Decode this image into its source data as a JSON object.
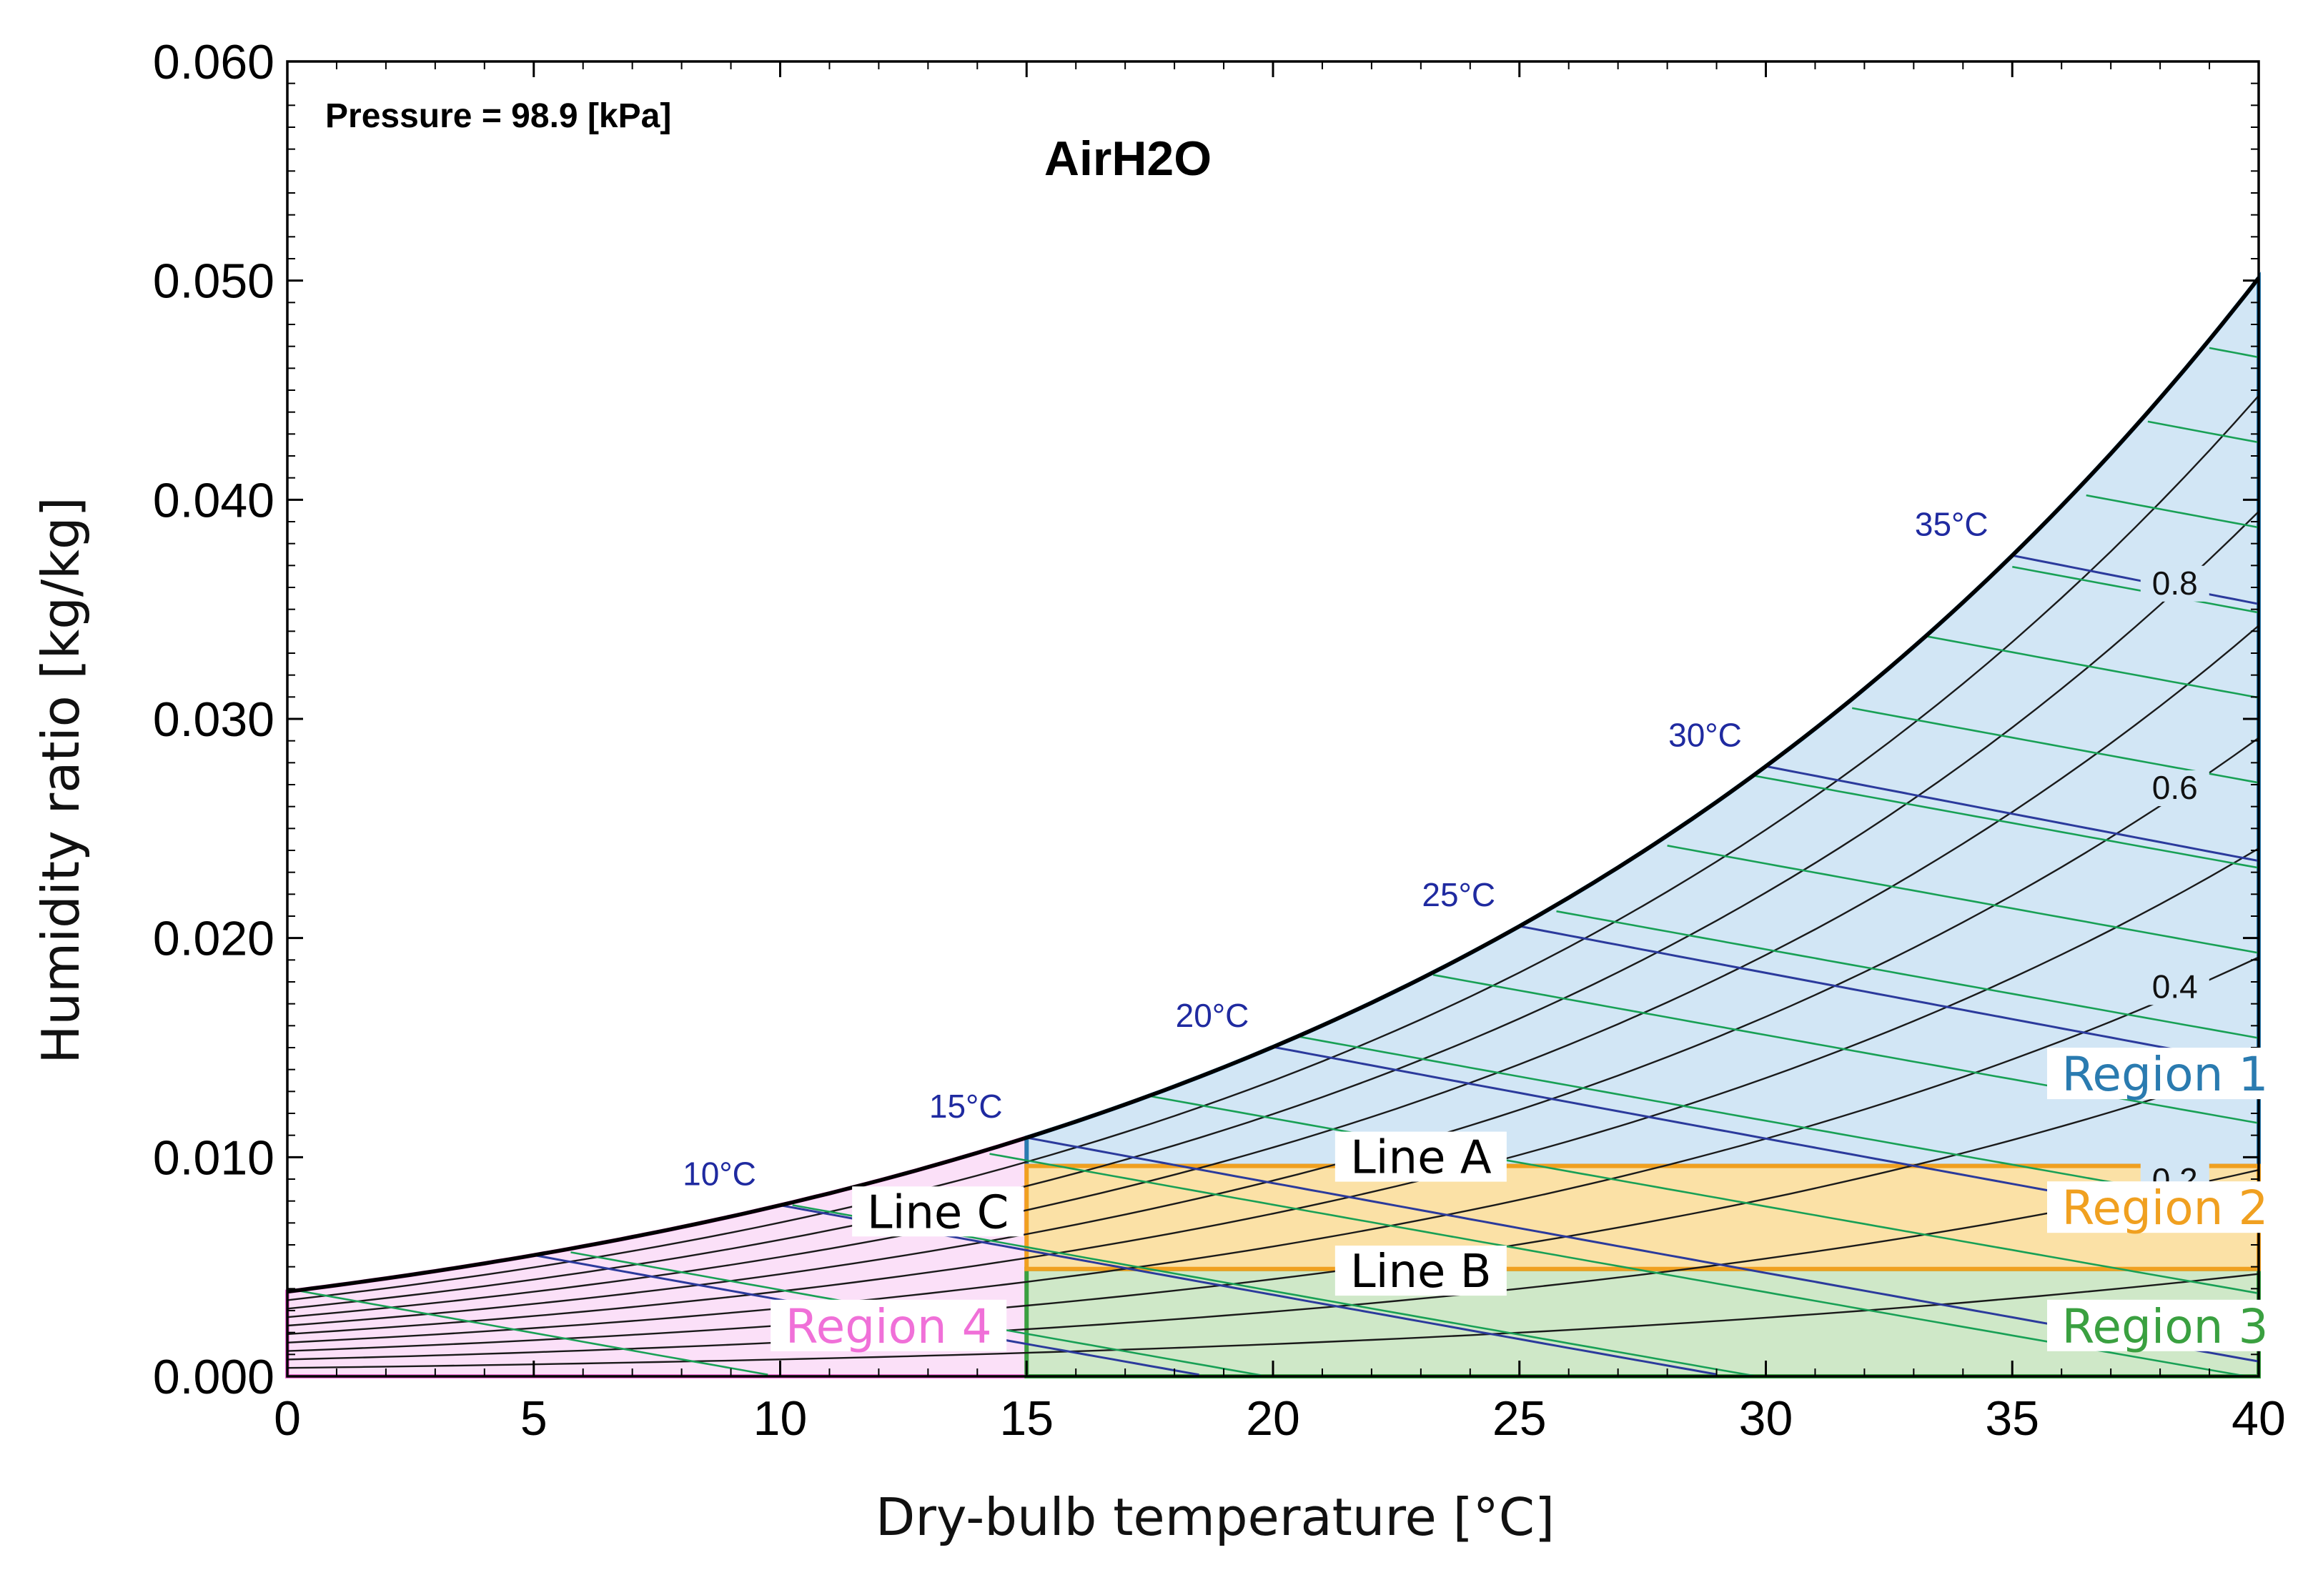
{
  "chart_data": {
    "type": "line",
    "title": "AirH2O",
    "subtitle": "Pressure = 98.9 [kPa]",
    "xlabel": "Dry-bulb temperature [°C]",
    "ylabel": "Humidity ratio [kg/kg]",
    "xlim": [
      0,
      40
    ],
    "ylim": [
      0,
      0.06
    ],
    "x_ticks": [
      "0",
      "5",
      "10",
      "15",
      "20",
      "25",
      "30",
      "35",
      "40"
    ],
    "y_ticks": [
      "0.000",
      "0.010",
      "0.020",
      "0.030",
      "0.040",
      "0.050",
      "0.060"
    ],
    "pressure_kpa": 98.9,
    "saturation_curve": {
      "x": [
        0,
        5,
        10,
        15,
        20,
        25,
        30,
        35,
        40
      ],
      "y": [
        0.0039,
        0.0055,
        0.0078,
        0.0109,
        0.0151,
        0.0206,
        0.028,
        0.0376,
        0.05
      ]
    },
    "relative_humidity_lines": [
      {
        "label": "0.8",
        "rh": 0.8
      },
      {
        "label": "0.6",
        "rh": 0.6
      },
      {
        "label": "0.4",
        "rh": 0.4
      },
      {
        "label": "0.2",
        "rh": 0.2
      }
    ],
    "wet_bulb_lines": [
      {
        "label": "10°C",
        "t": 10
      },
      {
        "label": "15°C",
        "t": 15
      },
      {
        "label": "20°C",
        "t": 20
      },
      {
        "label": "25°C",
        "t": 25
      },
      {
        "label": "30°C",
        "t": 30
      },
      {
        "label": "35°C",
        "t": 35
      }
    ],
    "regions": [
      {
        "name": "Region 1",
        "color": "#2a7bb0",
        "fill": "#d2e6f5",
        "bounds": {
          "x": [
            15,
            40
          ],
          "y": [
            0.0096,
            "saturation"
          ]
        }
      },
      {
        "name": "Region 2",
        "color": "#f0a020",
        "fill": "#fbe1a6",
        "bounds": {
          "x": [
            15,
            40
          ],
          "y": [
            0.0049,
            0.0096
          ]
        }
      },
      {
        "name": "Region 3",
        "color": "#3aa040",
        "fill": "#cfe8c8",
        "bounds": {
          "x": [
            15,
            40
          ],
          "y": [
            0,
            0.0049
          ]
        }
      },
      {
        "name": "Region 4",
        "color": "#f070d8",
        "fill": "#fbe0f8",
        "bounds": {
          "x": [
            0,
            15
          ],
          "y": [
            0,
            "saturation"
          ]
        }
      }
    ],
    "annotations": [
      {
        "text": "Line A",
        "x": 23,
        "y": 0.0096
      },
      {
        "text": "Line B",
        "x": 23,
        "y": 0.0049
      },
      {
        "text": "Line C",
        "x": 15,
        "y": 0.0071
      }
    ]
  }
}
